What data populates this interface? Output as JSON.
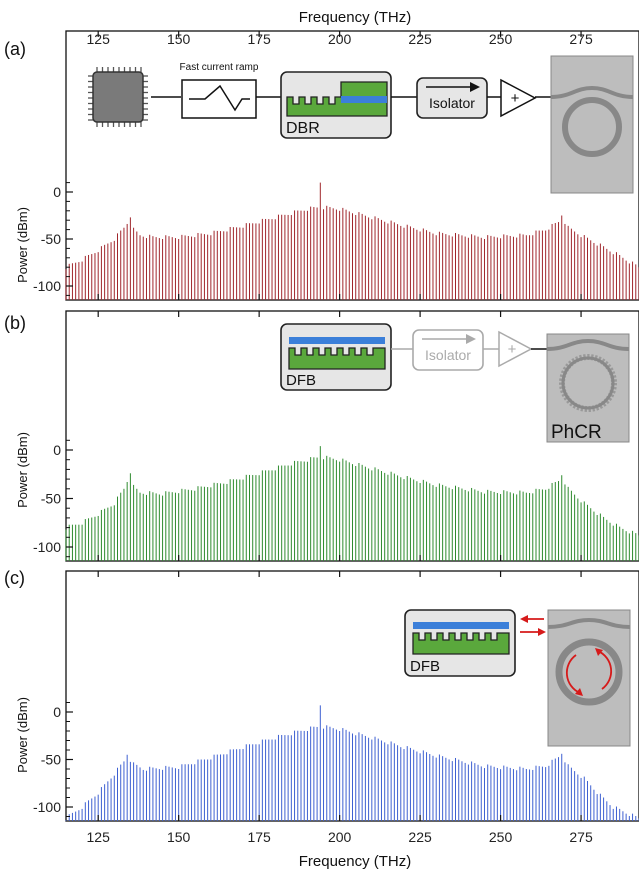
{
  "top_axis": {
    "label": "Frequency (THz)"
  },
  "bottom_axis": {
    "label": "Frequency (THz)"
  },
  "y_axis_label": "Power (dBm)",
  "schematic": {
    "ramp_label": "Fast current ramp",
    "dbr_label": "DBR",
    "isolator_label": "Isolator",
    "amp_label": "+",
    "dfb_label": "DFB",
    "phcr_label": "PhCR",
    "colors": {
      "green": "#5aa83c",
      "blue": "#3b7fd9",
      "box": "#e6e6e6",
      "chip": "#bdbdbd",
      "ring": "#888888",
      "arrow": "#d61a1a"
    }
  },
  "chart_data": [
    {
      "panel": "(a)",
      "type": "bar",
      "color": "#a0262c",
      "xlabel": "Frequency (THz)",
      "ylabel": "Power (dBm)",
      "xlim": [
        115,
        293
      ],
      "ylim": [
        -115,
        0
      ],
      "xticks": [
        125,
        150,
        175,
        200,
        225,
        250,
        275
      ],
      "yticks": [
        0,
        -50,
        -100
      ],
      "comb": {
        "spacing_thz": 1,
        "x_start": 115,
        "x_end": 293
      },
      "envelope": [
        {
          "x": 115,
          "y": -80
        },
        {
          "x": 120,
          "y": -72
        },
        {
          "x": 125,
          "y": -62
        },
        {
          "x": 130,
          "y": -50
        },
        {
          "x": 133,
          "y": -38
        },
        {
          "x": 135,
          "y": -28
        },
        {
          "x": 136,
          "y": -40
        },
        {
          "x": 138,
          "y": -46
        },
        {
          "x": 142,
          "y": -48
        },
        {
          "x": 150,
          "y": -48
        },
        {
          "x": 160,
          "y": -44
        },
        {
          "x": 170,
          "y": -36
        },
        {
          "x": 180,
          "y": -27
        },
        {
          "x": 190,
          "y": -18
        },
        {
          "x": 194,
          "y": -16
        },
        {
          "x": 200,
          "y": -18
        },
        {
          "x": 210,
          "y": -27
        },
        {
          "x": 220,
          "y": -36
        },
        {
          "x": 230,
          "y": -44
        },
        {
          "x": 245,
          "y": -48
        },
        {
          "x": 258,
          "y": -46
        },
        {
          "x": 264,
          "y": -40
        },
        {
          "x": 268,
          "y": -32
        },
        {
          "x": 269,
          "y": -26
        },
        {
          "x": 271,
          "y": -38
        },
        {
          "x": 275,
          "y": -46
        },
        {
          "x": 280,
          "y": -55
        },
        {
          "x": 286,
          "y": -66
        },
        {
          "x": 293,
          "y": -80
        }
      ],
      "peaks": [
        {
          "x": 135,
          "y": -27
        },
        {
          "x": 194,
          "y": 10
        },
        {
          "x": 269,
          "y": -25
        }
      ]
    },
    {
      "panel": "(b)",
      "type": "bar",
      "color": "#2e8b2e",
      "xlabel": "Frequency (THz)",
      "ylabel": "Power (dBm)",
      "xlim": [
        115,
        293
      ],
      "ylim": [
        -115,
        0
      ],
      "xticks": [
        125,
        150,
        175,
        200,
        225,
        250,
        275
      ],
      "yticks": [
        0,
        -50,
        -100
      ],
      "comb": {
        "spacing_thz": 1,
        "x_start": 115,
        "x_end": 293
      },
      "envelope": [
        {
          "x": 115,
          "y": -80
        },
        {
          "x": 120,
          "y": -75
        },
        {
          "x": 125,
          "y": -66
        },
        {
          "x": 130,
          "y": -55
        },
        {
          "x": 133,
          "y": -40
        },
        {
          "x": 135,
          "y": -24
        },
        {
          "x": 136,
          "y": -38
        },
        {
          "x": 138,
          "y": -44
        },
        {
          "x": 145,
          "y": -45
        },
        {
          "x": 155,
          "y": -40
        },
        {
          "x": 165,
          "y": -33
        },
        {
          "x": 175,
          "y": -24
        },
        {
          "x": 185,
          "y": -14
        },
        {
          "x": 194,
          "y": -7
        },
        {
          "x": 200,
          "y": -10
        },
        {
          "x": 210,
          "y": -19
        },
        {
          "x": 220,
          "y": -28
        },
        {
          "x": 230,
          "y": -36
        },
        {
          "x": 245,
          "y": -43
        },
        {
          "x": 258,
          "y": -44
        },
        {
          "x": 264,
          "y": -40
        },
        {
          "x": 268,
          "y": -32
        },
        {
          "x": 269,
          "y": -27
        },
        {
          "x": 271,
          "y": -40
        },
        {
          "x": 276,
          "y": -55
        },
        {
          "x": 282,
          "y": -70
        },
        {
          "x": 287,
          "y": -80
        },
        {
          "x": 293,
          "y": -88
        }
      ],
      "peaks": [
        {
          "x": 135,
          "y": -24
        },
        {
          "x": 194,
          "y": 4
        },
        {
          "x": 269,
          "y": -26
        }
      ]
    },
    {
      "panel": "(c)",
      "type": "bar",
      "color": "#3d5fd1",
      "xlabel": "Frequency (THz)",
      "ylabel": "Power (dBm)",
      "xlim": [
        115,
        293
      ],
      "ylim": [
        -115,
        0
      ],
      "xticks": [
        125,
        150,
        175,
        200,
        225,
        250,
        275
      ],
      "yticks": [
        0,
        -50,
        -100
      ],
      "comb": {
        "spacing_thz": 1,
        "x_start": 115,
        "x_end": 293
      },
      "envelope": [
        {
          "x": 115,
          "y": -112
        },
        {
          "x": 120,
          "y": -100
        },
        {
          "x": 125,
          "y": -85
        },
        {
          "x": 130,
          "y": -65
        },
        {
          "x": 133,
          "y": -52
        },
        {
          "x": 134,
          "y": -46
        },
        {
          "x": 136,
          "y": -55
        },
        {
          "x": 139,
          "y": -60
        },
        {
          "x": 150,
          "y": -58
        },
        {
          "x": 160,
          "y": -48
        },
        {
          "x": 170,
          "y": -37
        },
        {
          "x": 180,
          "y": -27
        },
        {
          "x": 190,
          "y": -18
        },
        {
          "x": 194,
          "y": -15
        },
        {
          "x": 200,
          "y": -18
        },
        {
          "x": 210,
          "y": -27
        },
        {
          "x": 220,
          "y": -37
        },
        {
          "x": 230,
          "y": -46
        },
        {
          "x": 245,
          "y": -57
        },
        {
          "x": 258,
          "y": -60
        },
        {
          "x": 264,
          "y": -57
        },
        {
          "x": 267,
          "y": -50
        },
        {
          "x": 269,
          "y": -45
        },
        {
          "x": 271,
          "y": -57
        },
        {
          "x": 276,
          "y": -70
        },
        {
          "x": 281,
          "y": -88
        },
        {
          "x": 285,
          "y": -100
        },
        {
          "x": 289,
          "y": -106
        },
        {
          "x": 293,
          "y": -112
        }
      ],
      "peaks": [
        {
          "x": 134,
          "y": -45
        },
        {
          "x": 194,
          "y": 7
        },
        {
          "x": 269,
          "y": -44
        }
      ]
    }
  ]
}
